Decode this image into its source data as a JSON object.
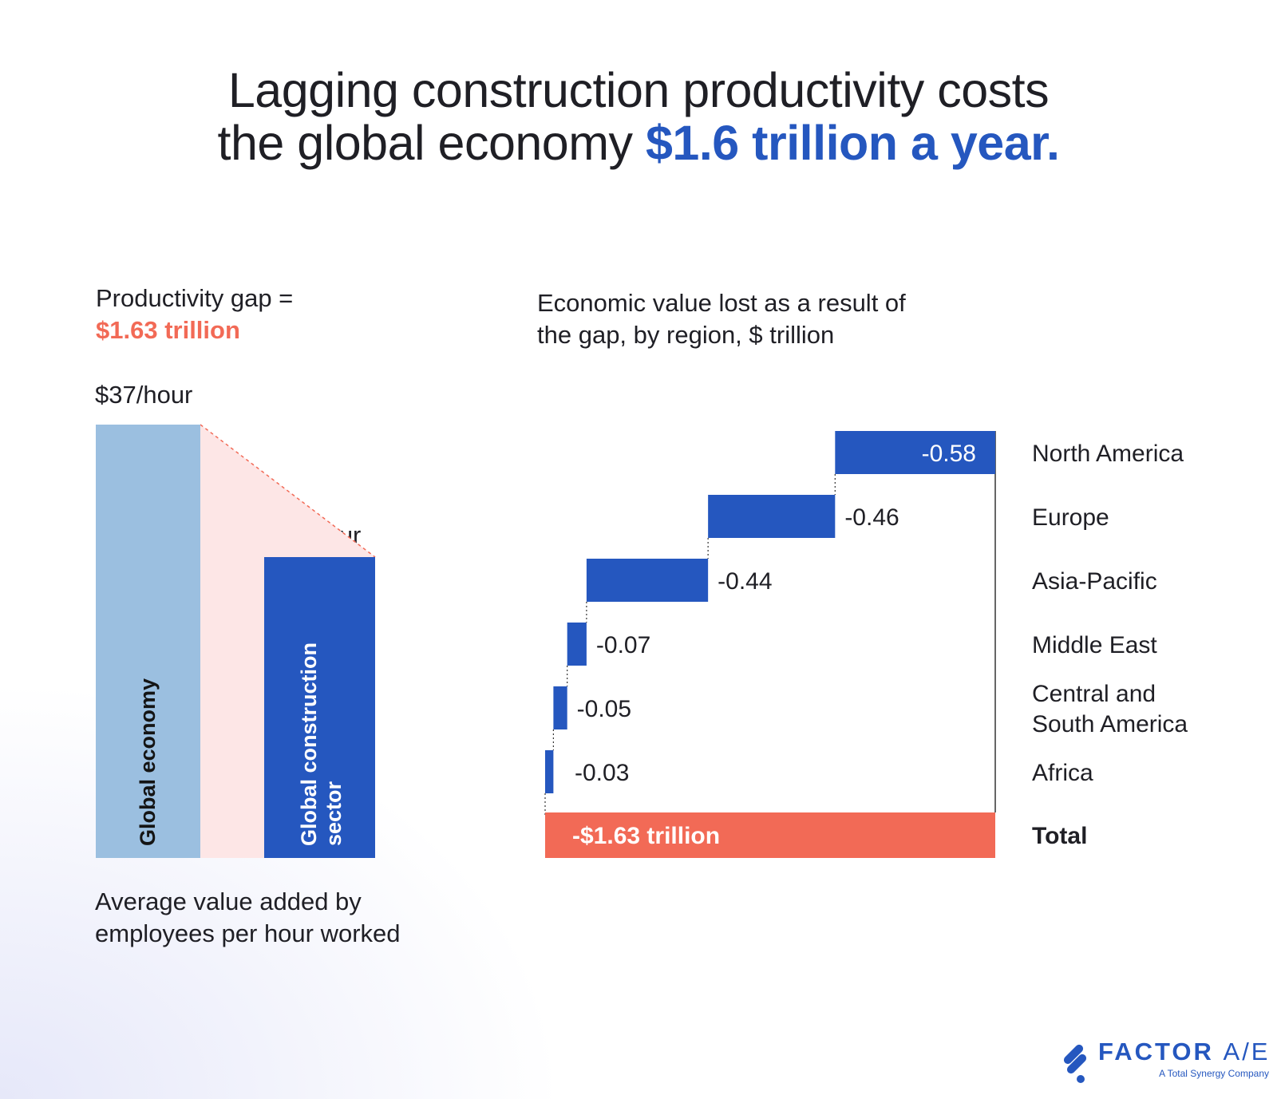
{
  "headline": {
    "line1": "Lagging construction productivity costs",
    "line2_plain": "the global economy ",
    "line2_highlight": "$1.6 trillion a year."
  },
  "left_panel": {
    "gap_label": "Productivity gap =",
    "gap_value": "$1.63 trillion",
    "caption_line1": "Average value added by",
    "caption_line2": "employees per hour worked"
  },
  "right_panel": {
    "subtitle_line1": "Economic value lost as a result of",
    "subtitle_line2": "the gap, by region, $ trillion"
  },
  "colors": {
    "light_blue": "#9bbfe0",
    "dark_blue": "#2557bf",
    "gap_pink": "#fde6e6",
    "coral": "#f26a56",
    "text": "#1f1f25"
  },
  "chart_data": [
    {
      "type": "bar",
      "categories": [
        "Global economy",
        "Global construction sector"
      ],
      "value_labels": [
        "$37/hour",
        "$25/hour"
      ],
      "values": [
        37,
        25
      ],
      "unit": "$/hour"
    },
    {
      "type": "bar",
      "subtype": "waterfall",
      "categories": [
        "North America",
        "Europe",
        "Asia-Pacific",
        "Middle East",
        "Central and South America",
        "Africa"
      ],
      "category_lines": [
        [
          "North America"
        ],
        [
          "Europe"
        ],
        [
          "Asia-Pacific"
        ],
        [
          "Middle East"
        ],
        [
          "Central and",
          "South America"
        ],
        [
          "Africa"
        ]
      ],
      "values": [
        -0.58,
        -0.46,
        -0.44,
        -0.07,
        -0.05,
        -0.03
      ],
      "value_labels": [
        "-0.58",
        "-0.46",
        "-0.44",
        "-0.07",
        "-0.05",
        "-0.03"
      ],
      "total": {
        "label": "Total",
        "value": -1.63,
        "value_label": "-$1.63 trillion"
      },
      "unit": "$ trillion"
    }
  ],
  "logo": {
    "brand_bold": "FACTOR",
    "brand_thin": "A/E",
    "tagline": "A Total Synergy Company"
  }
}
